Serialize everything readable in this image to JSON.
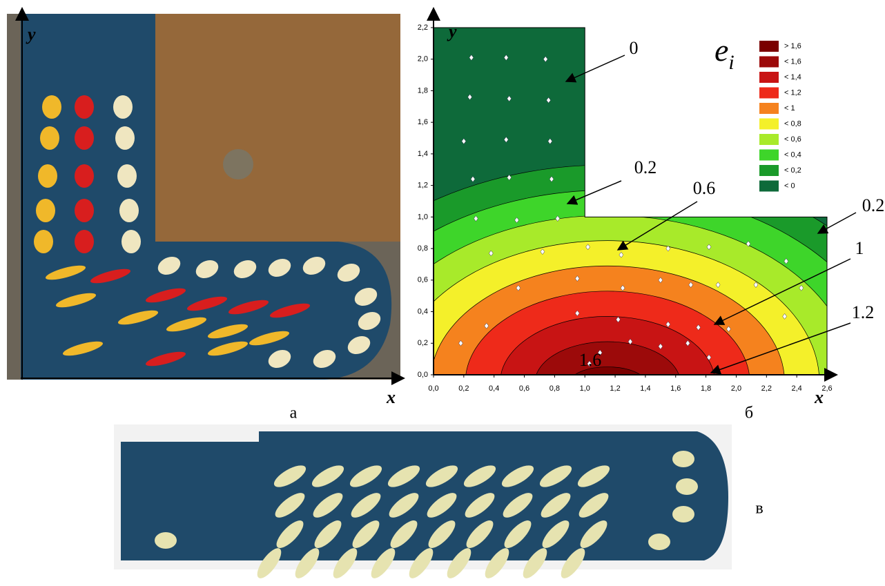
{
  "panel_labels": {
    "a": "а",
    "b": "б",
    "c": "в"
  },
  "photo_a": {
    "x_label": "x",
    "y_label": "y"
  },
  "chart_data": {
    "type": "contour",
    "x_label": "x",
    "y_label": "y",
    "legend_title": {
      "symbol": "e",
      "subscript": "i"
    },
    "xlim": [
      0,
      2.6
    ],
    "ylim": [
      0,
      2.2
    ],
    "xticks": [
      {
        "value": 0,
        "label": "0,0"
      },
      {
        "value": 0.2,
        "label": "0,2"
      },
      {
        "value": 0.4,
        "label": "0,4"
      },
      {
        "value": 0.6,
        "label": "0,6"
      },
      {
        "value": 0.8,
        "label": "0,8"
      },
      {
        "value": 1.0,
        "label": "1,0"
      },
      {
        "value": 1.2,
        "label": "1,2"
      },
      {
        "value": 1.4,
        "label": "1,4"
      },
      {
        "value": 1.6,
        "label": "1,6"
      },
      {
        "value": 1.8,
        "label": "1,8"
      },
      {
        "value": 2.0,
        "label": "2,0"
      },
      {
        "value": 2.2,
        "label": "2,2"
      },
      {
        "value": 2.4,
        "label": "2,4"
      },
      {
        "value": 2.6,
        "label": "2,6"
      }
    ],
    "yticks": [
      {
        "value": 0,
        "label": "0,0"
      },
      {
        "value": 0.2,
        "label": "0,2"
      },
      {
        "value": 0.4,
        "label": "0,4"
      },
      {
        "value": 0.6,
        "label": "0,6"
      },
      {
        "value": 0.8,
        "label": "0,8"
      },
      {
        "value": 1.0,
        "label": "1,0"
      },
      {
        "value": 1.2,
        "label": "1,2"
      },
      {
        "value": 1.4,
        "label": "1,4"
      },
      {
        "value": 1.6,
        "label": "1,6"
      },
      {
        "value": 1.8,
        "label": "1,8"
      },
      {
        "value": 2.0,
        "label": "2,0"
      },
      {
        "value": 2.2,
        "label": "2,2"
      }
    ],
    "legend": [
      {
        "label": "> 1,6",
        "color": "#7a0000"
      },
      {
        "label": "< 1,6",
        "color": "#9c0a0a"
      },
      {
        "label": "< 1,4",
        "color": "#c81414"
      },
      {
        "label": "< 1,2",
        "color": "#ee2a1a"
      },
      {
        "label": "< 1",
        "color": "#f5821e"
      },
      {
        "label": "< 0,8",
        "color": "#f4f02a"
      },
      {
        "label": "< 0,6",
        "color": "#a8ea2a"
      },
      {
        "label": "< 0,4",
        "color": "#3ed52a"
      },
      {
        "label": "< 0,2",
        "color": "#1a9a2a"
      },
      {
        "label": "< 0",
        "color": "#0e6a3a"
      }
    ],
    "annotations": [
      "0",
      "0.2",
      "0.6",
      "0.2",
      "1",
      "1.2",
      "1.6"
    ]
  }
}
